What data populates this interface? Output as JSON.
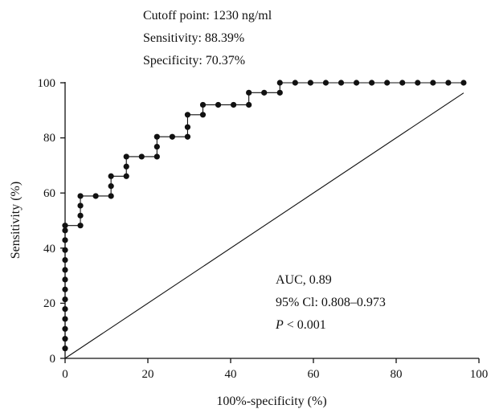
{
  "chart_data": {
    "type": "line",
    "xlabel": "100%-specificity (%)",
    "ylabel": "Sensitivity (%)",
    "xlim": [
      0,
      100
    ],
    "ylim": [
      0,
      100
    ],
    "xticks": [
      "0",
      "20",
      "40",
      "60",
      "80",
      "100"
    ],
    "yticks": [
      "0",
      "20",
      "40",
      "60",
      "80",
      "100"
    ],
    "grid": false,
    "legend": "none",
    "annotations": {
      "top": [
        "Cutoff point: 1230 ng/ml",
        "Sensitivity: 88.39%",
        "Specificity: 70.37%"
      ],
      "auc": "AUC, 0.89",
      "ci": "95% Cl: 0.808–0.973",
      "p_italic": "P",
      "p_rest": " < 0.001"
    },
    "series": [
      {
        "style": "step-with-markers",
        "x": [
          0,
          0,
          0,
          0,
          0,
          0,
          0,
          0,
          0,
          0,
          0,
          0,
          0,
          0,
          3.7,
          3.7,
          3.7,
          3.7,
          7.4,
          11.1,
          11.1,
          11.1,
          14.8,
          14.8,
          14.8,
          18.5,
          22.2,
          22.2,
          22.2,
          25.9,
          29.6,
          29.6,
          29.6,
          33.3,
          33.3,
          37,
          40.7,
          44.4,
          44.4,
          48.1,
          51.9,
          51.9,
          55.6,
          59.3,
          63,
          66.7,
          70.4,
          74.1,
          77.8,
          81.5,
          85.2,
          88.9,
          92.6,
          96.3
        ],
        "y": [
          3.6,
          7.1,
          10.7,
          14.3,
          17.9,
          21.4,
          25,
          28.6,
          32.1,
          35.7,
          39.3,
          42.9,
          46.4,
          48.2,
          48.2,
          51.8,
          55.4,
          58.9,
          58.9,
          58.9,
          62.5,
          66.1,
          66.1,
          69.6,
          73.2,
          73.2,
          73.2,
          76.8,
          80.4,
          80.4,
          80.4,
          83.9,
          88.4,
          88.4,
          92,
          92,
          92,
          92,
          96.4,
          96.4,
          96.4,
          100,
          100,
          100,
          100,
          100,
          100,
          100,
          100,
          100,
          100,
          100,
          100,
          100
        ]
      },
      {
        "style": "reference-diagonal",
        "x": [
          0,
          96.3
        ],
        "y": [
          0,
          96.3
        ]
      }
    ]
  }
}
